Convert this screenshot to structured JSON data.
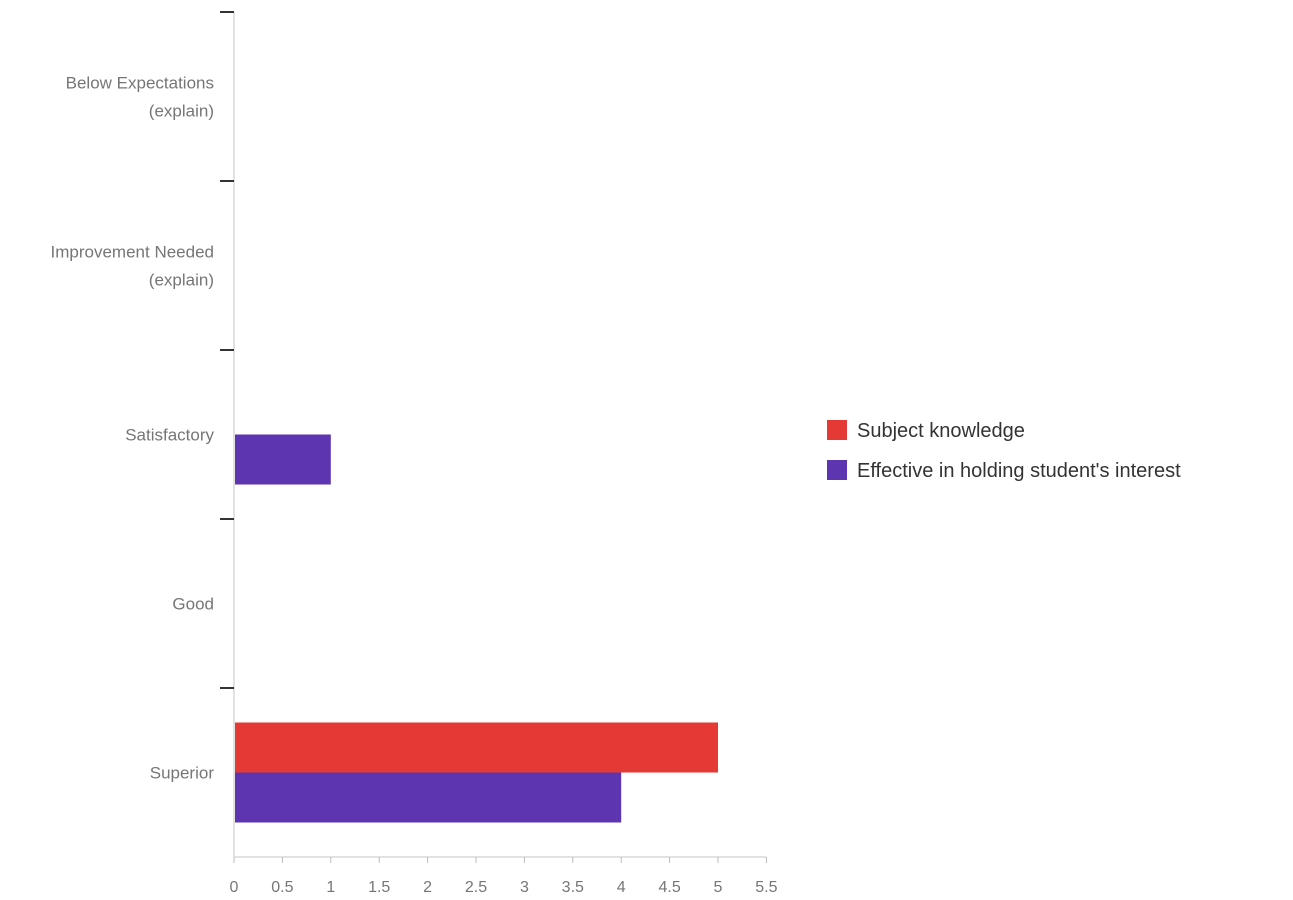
{
  "chart_data": {
    "type": "bar",
    "orientation": "horizontal",
    "categories": [
      [
        "Below Expectations",
        "(explain)"
      ],
      [
        "Improvement Needed",
        "(explain)"
      ],
      [
        "Satisfactory"
      ],
      [
        "Good"
      ],
      [
        "Superior"
      ]
    ],
    "series": [
      {
        "name": "Subject knowledge",
        "color": "#e53935",
        "values": [
          0,
          0,
          0,
          0,
          5
        ]
      },
      {
        "name": "Effective in holding student's interest",
        "color": "#5e35b1",
        "values": [
          0,
          0,
          1,
          0,
          4
        ]
      }
    ],
    "x_ticks": [
      "0",
      "0.5",
      "1",
      "1.5",
      "2",
      "2.5",
      "3",
      "3.5",
      "4",
      "4.5",
      "5",
      "5.5"
    ],
    "xlim": [
      0,
      5.5
    ],
    "grid": false,
    "legend_position": "right"
  }
}
